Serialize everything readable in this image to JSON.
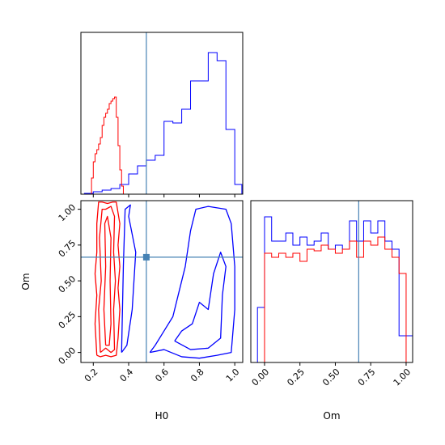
{
  "chart_data": [
    {
      "type": "histogram",
      "xlim": [
        0.13,
        1.045
      ],
      "ylim": [
        0,
        200
      ],
      "xticks": [
        0.2,
        0.4,
        0.6,
        0.8,
        {
          "value": 1,
          "label": "1.0"
        }
      ],
      "show_xticklabels": false,
      "bins": [
        0.15,
        0.2,
        0.25,
        0.3,
        0.35,
        0.4,
        0.45,
        0.5,
        0.55,
        0.6,
        0.65,
        0.7,
        0.75,
        0.8,
        0.85,
        0.9,
        0.95,
        1.0,
        1.04
      ],
      "series": [
        {
          "color": "#0000ff",
          "bins": [
            0.15,
            0.2,
            0.25,
            0.3,
            0.35,
            0.4,
            0.45,
            0.5,
            0.55,
            0.6,
            0.65,
            0.7,
            0.75,
            0.8,
            0.85,
            0.9,
            0.95,
            1.0,
            1.04
          ],
          "values": [
            1,
            3,
            5,
            7,
            12,
            25,
            35,
            42,
            48,
            90,
            88,
            105,
            140,
            140,
            175,
            165,
            80,
            12
          ]
        },
        {
          "color": "#ff0000",
          "bins": [
            0.19,
            0.2,
            0.21,
            0.22,
            0.23,
            0.24,
            0.25,
            0.26,
            0.27,
            0.28,
            0.29,
            0.3,
            0.31,
            0.32,
            0.33,
            0.34,
            0.35,
            0.36,
            0.37
          ],
          "values": [
            20,
            40,
            50,
            55,
            62,
            70,
            85,
            95,
            100,
            105,
            112,
            115,
            118,
            120,
            95,
            60,
            30,
            10
          ]
        }
      ],
      "axvline": 0.5,
      "truth_color": "#4682b4"
    },
    {
      "type": "contour",
      "xlim": [
        0.13,
        1.045
      ],
      "ylim": [
        -0.07,
        1.06
      ],
      "xticks": [
        0.2,
        0.4,
        0.6,
        0.8,
        {
          "value": 1,
          "label": "1.0"
        }
      ],
      "yticks": [
        {
          "value": 0,
          "label": "0.00"
        },
        {
          "value": 0.25,
          "label": "0.25"
        },
        {
          "value": 0.5,
          "label": "0.50"
        },
        {
          "value": 0.75,
          "label": "0.75"
        },
        {
          "value": 1,
          "label": "1.00"
        }
      ],
      "xlabel": "H0",
      "ylabel": "Om",
      "series": [
        {
          "color": "#ff0000",
          "contours": [
            {
              "x": [
                0.22,
                0.21,
                0.22,
                0.21,
                0.22,
                0.22,
                0.23,
                0.25,
                0.28,
                0.31,
                0.33,
                0.35,
                0.34,
                0.35,
                0.34,
                0.35,
                0.34,
                0.33,
                0.3,
                0.27,
                0.24,
                0.22
              ],
              "y": [
                -0.02,
                0.2,
                0.4,
                0.55,
                0.7,
                0.9,
                1.05,
                1.05,
                1.04,
                1.05,
                1.05,
                0.9,
                0.75,
                0.6,
                0.45,
                0.3,
                0.1,
                -0.02,
                -0.03,
                -0.02,
                -0.03,
                -0.02
              ]
            },
            {
              "x": [
                0.24,
                0.23,
                0.245,
                0.235,
                0.25,
                0.27,
                0.3,
                0.32,
                0.315,
                0.325,
                0.315,
                0.32,
                0.3,
                0.27,
                0.24
              ],
              "y": [
                0.0,
                0.3,
                0.5,
                0.8,
                1.0,
                1.0,
                1.02,
                0.95,
                0.7,
                0.5,
                0.3,
                0.02,
                0.0,
                0.03,
                0.0
              ]
            },
            {
              "x": [
                0.27,
                0.26,
                0.27,
                0.265,
                0.28,
                0.3,
                0.295,
                0.3,
                0.29,
                0.27
              ],
              "y": [
                0.05,
                0.3,
                0.6,
                0.9,
                0.95,
                0.8,
                0.5,
                0.2,
                0.05,
                0.05
              ]
            }
          ]
        },
        {
          "color": "#0000ff",
          "contours": [
            {
              "x": [
                0.52,
                0.6,
                0.7,
                0.8,
                0.9,
                0.98,
                1.0,
                1.0,
                0.98,
                0.95,
                0.85,
                0.78,
                0.75,
                0.72,
                0.68,
                0.65,
                0.6,
                0.55,
                0.52
              ],
              "y": [
                0.0,
                0.02,
                -0.03,
                -0.04,
                -0.02,
                0.0,
                0.3,
                0.6,
                0.9,
                1.0,
                1.02,
                1.0,
                0.85,
                0.6,
                0.4,
                0.25,
                0.15,
                0.05,
                0.0
              ]
            },
            {
              "x": [
                0.66,
                0.75,
                0.85,
                0.92,
                0.93,
                0.95,
                0.92,
                0.88,
                0.85,
                0.8,
                0.76,
                0.7,
                0.66
              ],
              "y": [
                0.08,
                0.02,
                0.03,
                0.1,
                0.4,
                0.6,
                0.7,
                0.55,
                0.3,
                0.35,
                0.2,
                0.15,
                0.08
              ]
            },
            {
              "x": [
                0.36,
                0.39,
                0.42,
                0.44,
                0.4,
                0.41,
                0.38,
                0.37,
                0.36
              ],
              "y": [
                0.0,
                0.05,
                0.3,
                0.7,
                0.95,
                1.03,
                1.0,
                0.6,
                0.0
              ]
            }
          ]
        }
      ],
      "axvline": 0.5,
      "axhline": 0.665,
      "truth_color": "#4682b4"
    },
    {
      "type": "histogram",
      "xlim": [
        -0.097,
        1.046
      ],
      "ylim": [
        0,
        200
      ],
      "xticks": [
        {
          "value": 0,
          "label": "0.00"
        },
        {
          "value": 0.25,
          "label": "0.25"
        },
        {
          "value": 0.5,
          "label": "0.50"
        },
        {
          "value": 0.75,
          "label": "0.75"
        },
        {
          "value": 1,
          "label": "1.00"
        }
      ],
      "show_xticklabels": true,
      "xlabel": "Om",
      "series": [
        {
          "color": "#0000ff",
          "bins": [
            -0.05,
            0.0,
            0.05,
            0.1,
            0.15,
            0.2,
            0.25,
            0.3,
            0.35,
            0.4,
            0.45,
            0.5,
            0.55,
            0.6,
            0.65,
            0.7,
            0.75,
            0.8,
            0.85,
            0.9,
            0.95,
            1.0,
            1.05
          ],
          "values": [
            68,
            180,
            150,
            150,
            160,
            145,
            155,
            145,
            150,
            160,
            140,
            145,
            140,
            175,
            150,
            175,
            160,
            175,
            150,
            140,
            33,
            33
          ]
        },
        {
          "color": "#ff0000",
          "bins": [
            -0.05,
            0.0,
            0.05,
            0.1,
            0.15,
            0.2,
            0.25,
            0.3,
            0.35,
            0.4,
            0.45,
            0.5,
            0.55,
            0.6,
            0.65,
            0.7,
            0.75,
            0.8,
            0.85,
            0.9,
            0.95,
            1.0,
            1.05
          ],
          "values": [
            0,
            135,
            130,
            135,
            130,
            135,
            125,
            140,
            138,
            145,
            140,
            135,
            140,
            150,
            130,
            150,
            145,
            155,
            140,
            130,
            110,
            0
          ]
        }
      ],
      "axvline": 0.665,
      "truth_color": "#4682b4"
    }
  ]
}
